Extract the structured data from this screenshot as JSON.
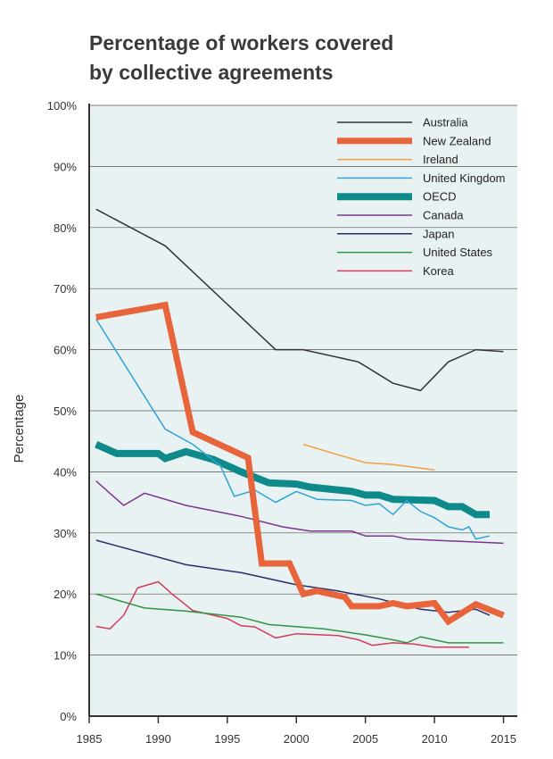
{
  "chart_data": {
    "type": "line",
    "title_lines": [
      "Percentage of workers covered",
      "by collective agreements"
    ],
    "xlabel": "",
    "ylabel": "Percentage",
    "xlim": [
      1985,
      2016
    ],
    "ylim": [
      0,
      100
    ],
    "xticks": [
      1985,
      1990,
      1995,
      2000,
      2005,
      2010,
      2015
    ],
    "yticks": [
      0,
      10,
      20,
      30,
      40,
      50,
      60,
      70,
      80,
      90,
      100
    ],
    "ytick_suffix": "%",
    "grid": true,
    "legend_position": "top-right",
    "colors": {
      "plot_background": "#e9f2f2",
      "grid": "#555555",
      "axis": "#333333"
    },
    "series": [
      {
        "name": "Australia",
        "color": "#333333",
        "width": 1.5,
        "points": [
          [
            1985.5,
            83
          ],
          [
            1990.5,
            77
          ],
          [
            1998.5,
            60
          ],
          [
            2000.5,
            60
          ],
          [
            2004.5,
            58
          ],
          [
            2007,
            54.5
          ],
          [
            2009,
            53.3
          ],
          [
            2011,
            58
          ],
          [
            2013,
            60
          ],
          [
            2015,
            59.7
          ]
        ]
      },
      {
        "name": "New Zealand",
        "color": "#e8643a",
        "width": 7,
        "points": [
          [
            1985.5,
            65.3
          ],
          [
            1990.5,
            67.3
          ],
          [
            1992.5,
            46.5
          ],
          [
            1996.5,
            42.3
          ],
          [
            1997.5,
            25
          ],
          [
            1999.5,
            25
          ],
          [
            2000.5,
            20
          ],
          [
            2001.5,
            20.5
          ],
          [
            2003.5,
            19.5
          ],
          [
            2004,
            18
          ],
          [
            2006,
            18
          ],
          [
            2007,
            18.5
          ],
          [
            2008,
            18
          ],
          [
            2010,
            18.5
          ],
          [
            2011,
            15.5
          ],
          [
            2013,
            18.3
          ],
          [
            2015,
            16.5
          ]
        ]
      },
      {
        "name": "Ireland",
        "color": "#f0a040",
        "width": 1.5,
        "points": [
          [
            2000.5,
            44.5
          ],
          [
            2003,
            42.8
          ],
          [
            2005,
            41.5
          ],
          [
            2007,
            41.2
          ],
          [
            2010,
            40.3
          ]
        ]
      },
      {
        "name": "United Kingdom",
        "color": "#2ea3d6",
        "width": 1.5,
        "points": [
          [
            1985.5,
            65
          ],
          [
            1990.5,
            47
          ],
          [
            1992.5,
            44.5
          ],
          [
            1994.5,
            41
          ],
          [
            1995.5,
            36
          ],
          [
            1997,
            37
          ],
          [
            1998.5,
            35
          ],
          [
            2000,
            36.8
          ],
          [
            2001.5,
            35.5
          ],
          [
            2004,
            35.3
          ],
          [
            2005,
            34.5
          ],
          [
            2006,
            34.8
          ],
          [
            2007,
            33
          ],
          [
            2008,
            35.3
          ],
          [
            2009,
            33.5
          ],
          [
            2010,
            32.5
          ],
          [
            2011,
            31
          ],
          [
            2012,
            30.5
          ],
          [
            2012.5,
            31
          ],
          [
            2013,
            29
          ],
          [
            2014,
            29.5
          ]
        ]
      },
      {
        "name": "OECD",
        "color": "#0e8a8a",
        "width": 8,
        "points": [
          [
            1985.5,
            44.5
          ],
          [
            1987,
            43
          ],
          [
            1990,
            43
          ],
          [
            1990.5,
            42.2
          ],
          [
            1992,
            43.3
          ],
          [
            1994,
            42
          ],
          [
            1996,
            40
          ],
          [
            1998,
            38.2
          ],
          [
            2000,
            38
          ],
          [
            2001,
            37.5
          ],
          [
            2004,
            36.8
          ],
          [
            2005,
            36.2
          ],
          [
            2006,
            36.2
          ],
          [
            2007,
            35.5
          ],
          [
            2010,
            35.3
          ],
          [
            2011,
            34.3
          ],
          [
            2012,
            34.3
          ],
          [
            2013,
            33
          ],
          [
            2014,
            33
          ]
        ]
      },
      {
        "name": "Canada",
        "color": "#7b3590",
        "width": 1.5,
        "points": [
          [
            1985.5,
            38.5
          ],
          [
            1987.5,
            34.5
          ],
          [
            1989,
            36.5
          ],
          [
            1992,
            34.5
          ],
          [
            1996,
            32.7
          ],
          [
            1999,
            31
          ],
          [
            2001,
            30.3
          ],
          [
            2004,
            30.3
          ],
          [
            2005,
            29.5
          ],
          [
            2007,
            29.5
          ],
          [
            2008,
            29
          ],
          [
            2015,
            28.3
          ]
        ]
      },
      {
        "name": "Japan",
        "color": "#2b2b6e",
        "width": 1.5,
        "points": [
          [
            1985.5,
            28.8
          ],
          [
            1992,
            24.8
          ],
          [
            1996,
            23.5
          ],
          [
            2000,
            21.5
          ],
          [
            2003,
            20.5
          ],
          [
            2006,
            19.2
          ],
          [
            2009,
            17.5
          ],
          [
            2011,
            17
          ],
          [
            2013,
            17.5
          ],
          [
            2014,
            16.5
          ]
        ]
      },
      {
        "name": "United States",
        "color": "#2f9443",
        "width": 1.5,
        "points": [
          [
            1985.5,
            20
          ],
          [
            1989,
            17.7
          ],
          [
            1992,
            17.2
          ],
          [
            1996,
            16.2
          ],
          [
            1998,
            15
          ],
          [
            2002,
            14.3
          ],
          [
            2005,
            13.3
          ],
          [
            2007,
            12.5
          ],
          [
            2008,
            12
          ],
          [
            2009,
            13
          ],
          [
            2011,
            12
          ],
          [
            2015,
            12
          ]
        ]
      },
      {
        "name": "Korea",
        "color": "#d23b5a",
        "width": 1.5,
        "points": [
          [
            1985.5,
            14.7
          ],
          [
            1986.5,
            14.3
          ],
          [
            1987.5,
            16.5
          ],
          [
            1988.5,
            21
          ],
          [
            1990,
            22
          ],
          [
            1991,
            20
          ],
          [
            1992.5,
            17.3
          ],
          [
            1995,
            16
          ],
          [
            1996,
            14.8
          ],
          [
            1997,
            14.6
          ],
          [
            1998.5,
            12.8
          ],
          [
            2000,
            13.5
          ],
          [
            2003,
            13.2
          ],
          [
            2004.5,
            12.5
          ],
          [
            2005.5,
            11.6
          ],
          [
            2007,
            12
          ],
          [
            2008.5,
            11.8
          ],
          [
            2010,
            11.3
          ],
          [
            2012.5,
            11.3
          ]
        ]
      }
    ]
  }
}
